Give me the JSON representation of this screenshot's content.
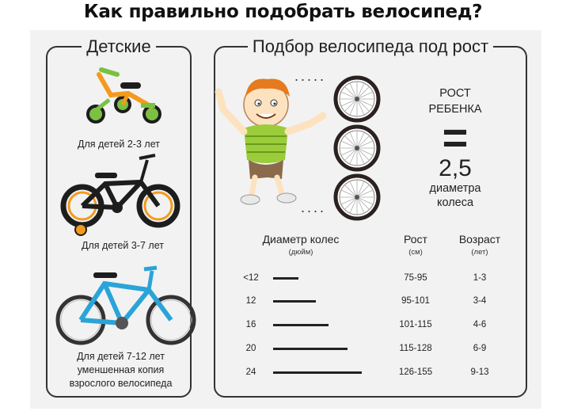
{
  "title": "Как правильно подобрать велосипед?",
  "left_panel": {
    "title": "Детские",
    "captions": [
      "Для детей 2-3 лет",
      "Для детей 3-7 лет",
      "Для детей 7-12 лет",
      "уменшенная копия",
      "взрослого велосипеда"
    ]
  },
  "right_panel": {
    "title": "Подбор велосипеда под рост",
    "formula": {
      "line1": "РОСТ",
      "line2": "РЕБЕНКА",
      "equals": "=",
      "value": "2,5",
      "line3": "диаметра",
      "line4": "колеса"
    },
    "table": {
      "headers": {
        "diameter": "Диаметр колес",
        "diameter_unit": "(дюйм)",
        "height": "Рост",
        "height_unit": "(см)",
        "age": "Возраст",
        "age_unit": "(лет)"
      },
      "rows": [
        {
          "diameter": "<12",
          "height": "75-95",
          "age": "1-3"
        },
        {
          "diameter": "12",
          "height": "95-101",
          "age": "3-4"
        },
        {
          "diameter": "16",
          "height": "101-115",
          "age": "4-6"
        },
        {
          "diameter": "20",
          "height": "115-128",
          "age": "6-9"
        },
        {
          "diameter": "24",
          "height": "126-155",
          "age": "9-13"
        }
      ]
    }
  },
  "colors": {
    "panel_bg": "#f2f2f2",
    "frame_orange": "#f39a1e",
    "wheel_green": "#7ac142",
    "bike_black": "#1d1d1d",
    "bike_blue": "#2aa4d8",
    "shirt_green": "#9bcc3a"
  }
}
